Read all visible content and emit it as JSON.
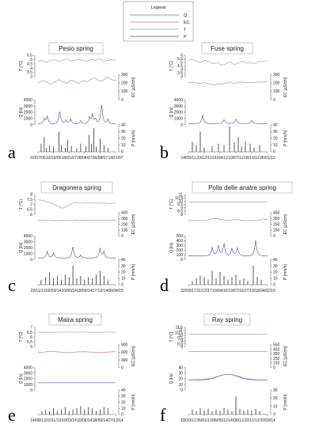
{
  "legend": {
    "title": "Legend",
    "entries": [
      {
        "label": "Q",
        "color": "#7a7a7a"
      },
      {
        "label": "EC",
        "color": "#c07b83"
      },
      {
        "label": "T",
        "color": "#7fae8a"
      },
      {
        "label": "P",
        "color": "#4a4ab0"
      }
    ]
  },
  "chart_data": [
    {
      "type": "line",
      "panel_letter": "a",
      "title": "Pesio spring",
      "x_tick_labels": [
        "02/07/06",
        "10/10/06",
        "18/01/07",
        "28/04/07",
        "06/08/07",
        "14/11/07"
      ],
      "T": {
        "label": "T [°C]",
        "ticks": [
          "3",
          "3.5",
          "4",
          "4.5",
          "5",
          "5.5"
        ],
        "ylim": [
          3,
          5.5
        ],
        "y_samples": [
          4.8,
          4.9,
          4.7,
          4.9,
          5.0,
          4.8,
          4.9,
          5.1,
          4.8,
          4.9,
          5.0,
          4.9,
          4.8,
          5.0,
          4.9,
          5.1,
          4.8,
          4.9,
          5.0,
          4.9
        ]
      },
      "EC": {
        "label": "EC [µS/cm]",
        "ticks": [
          "0",
          "100",
          "200",
          "300"
        ],
        "ylim": [
          0,
          300
        ],
        "y_samples": [
          200,
          230,
          215,
          185,
          205,
          240,
          215,
          195,
          235,
          220,
          190,
          230,
          215,
          245,
          260,
          220,
          235,
          275,
          240,
          230
        ]
      },
      "Q": {
        "label": "Q [l/s]",
        "ticks": [
          "0",
          "1000",
          "2000",
          "3000",
          "4000"
        ],
        "ylim": [
          0,
          4000
        ],
        "peaks": [
          [
            0.08,
            900
          ],
          [
            0.12,
            1300
          ],
          [
            0.28,
            2300
          ],
          [
            0.36,
            700
          ],
          [
            0.42,
            900
          ],
          [
            0.55,
            600
          ],
          [
            0.66,
            1000
          ],
          [
            0.7,
            1600
          ],
          [
            0.74,
            900
          ],
          [
            0.82,
            3500
          ],
          [
            0.9,
            800
          ]
        ],
        "base": 150
      },
      "P": {
        "label": "P [mm/h]",
        "ticks": [
          "0",
          "10",
          "20",
          "30",
          "40"
        ],
        "ylim": [
          0,
          40
        ],
        "bars": [
          [
            0.04,
            12
          ],
          [
            0.08,
            22
          ],
          [
            0.11,
            6
          ],
          [
            0.15,
            10
          ],
          [
            0.2,
            8
          ],
          [
            0.27,
            30
          ],
          [
            0.3,
            10
          ],
          [
            0.35,
            6
          ],
          [
            0.38,
            18
          ],
          [
            0.43,
            9
          ],
          [
            0.5,
            5
          ],
          [
            0.55,
            12
          ],
          [
            0.62,
            8
          ],
          [
            0.66,
            25
          ],
          [
            0.69,
            12
          ],
          [
            0.72,
            35
          ],
          [
            0.75,
            8
          ],
          [
            0.8,
            20
          ],
          [
            0.85,
            10
          ],
          [
            0.9,
            6
          ]
        ]
      }
    },
    {
      "type": "line",
      "panel_letter": "b",
      "title": "Fuse spring",
      "x_tick_labels": [
        "14/09/11",
        "23/12/11",
        "01/04/12",
        "10/07/12",
        "18/10/12",
        "26/01/13"
      ],
      "T": {
        "label": "T [°C]",
        "ticks": [
          "3",
          "3.5",
          "4",
          "4.5",
          "5",
          "5.5",
          "6"
        ],
        "ylim": [
          3,
          6
        ],
        "y_samples": [
          5.3,
          5.4,
          5.2,
          5.0,
          5.3,
          5.1,
          4.8,
          5.0,
          4.6,
          4.8,
          5.1,
          4.7,
          4.9,
          5.2,
          4.9,
          5.0,
          4.8,
          5.2,
          5.1,
          5.3
        ]
      },
      "EC": {
        "label": "EC [µS/cm]",
        "ticks": [
          "0",
          "100",
          "200",
          "300"
        ],
        "ylim": [
          0,
          300
        ],
        "y_samples": [
          205,
          210,
          200,
          195,
          205,
          190,
          175,
          190,
          185,
          200,
          210,
          195,
          205,
          215,
          200,
          210,
          205,
          215,
          210,
          220
        ]
      },
      "Q": {
        "label": "Q [l/s]",
        "ticks": [
          "0",
          "1000",
          "2000",
          "3000",
          "4000"
        ],
        "ylim": [
          0,
          4000
        ],
        "peaks": [
          [
            0.18,
            1500
          ],
          [
            0.45,
            700
          ],
          [
            0.6,
            800
          ],
          [
            0.8,
            600
          ]
        ],
        "base": 200
      },
      "P": {
        "label": "P [mm/h]",
        "ticks": [
          "0",
          "10",
          "20",
          "30",
          "40"
        ],
        "ylim": [
          0,
          40
        ],
        "bars": [
          [
            0.05,
            15
          ],
          [
            0.1,
            10
          ],
          [
            0.15,
            30
          ],
          [
            0.2,
            6
          ],
          [
            0.3,
            8
          ],
          [
            0.38,
            12
          ],
          [
            0.45,
            10
          ],
          [
            0.52,
            38
          ],
          [
            0.58,
            14
          ],
          [
            0.63,
            22
          ],
          [
            0.67,
            8
          ],
          [
            0.72,
            16
          ],
          [
            0.78,
            12
          ],
          [
            0.83,
            6
          ],
          [
            0.9,
            10
          ]
        ]
      }
    },
    {
      "type": "line",
      "panel_letter": "c",
      "title": "Dragonera spring",
      "x_tick_labels": [
        "22/11/13",
        "02/03/14",
        "10/06/14",
        "18/09/14",
        "27/12/14",
        "06/04/15"
      ],
      "T": {
        "label": "T [°C]",
        "ticks": [
          "6",
          "6.5",
          "7",
          "7.5",
          "8"
        ],
        "ylim": [
          6,
          8
        ],
        "y_samples": [
          7.5,
          7.4,
          7.3,
          7.2,
          7.0,
          6.8,
          6.6,
          6.8,
          7.0,
          7.2,
          7.2,
          7.1,
          7.2,
          7.1,
          7.2,
          7.1,
          7.2,
          7.1,
          7.1,
          7.2
        ]
      },
      "EC": {
        "label": "EC [µS/cm]",
        "ticks": [
          "0",
          "100",
          "200",
          "300",
          "400"
        ],
        "ylim": [
          0,
          400
        ],
        "y_samples": [
          270,
          275,
          265,
          270,
          260,
          265,
          270,
          265,
          260,
          270,
          275,
          270,
          265,
          275,
          270,
          275,
          265,
          270,
          275,
          270
        ]
      },
      "Q": {
        "label": "Q [l/s]",
        "ticks": [
          "0",
          "1000",
          "2000",
          "3000",
          "4000"
        ],
        "ylim": [
          0,
          4000
        ],
        "peaks": [
          [
            0.12,
            1200
          ],
          [
            0.2,
            900
          ],
          [
            0.45,
            2200
          ],
          [
            0.55,
            600
          ],
          [
            0.8,
            1800
          ],
          [
            0.85,
            1200
          ]
        ],
        "base": 250
      },
      "P": {
        "label": "P [mm/h]",
        "ticks": [
          "0",
          "10",
          "20",
          "30",
          "40"
        ],
        "ylim": [
          0,
          40
        ],
        "bars": [
          [
            0.04,
            8
          ],
          [
            0.1,
            12
          ],
          [
            0.15,
            20
          ],
          [
            0.2,
            10
          ],
          [
            0.25,
            14
          ],
          [
            0.3,
            8
          ],
          [
            0.35,
            16
          ],
          [
            0.4,
            12
          ],
          [
            0.45,
            30
          ],
          [
            0.5,
            10
          ],
          [
            0.55,
            14
          ],
          [
            0.6,
            8
          ],
          [
            0.65,
            12
          ],
          [
            0.7,
            10
          ],
          [
            0.75,
            16
          ],
          [
            0.8,
            22
          ],
          [
            0.85,
            14
          ],
          [
            0.9,
            8
          ]
        ]
      }
    },
    {
      "type": "line",
      "panel_letter": "d",
      "title": "Polla delle anatre spring",
      "x_tick_labels": [
        "22/09/17",
        "31/12/17",
        "10/04/18",
        "19/07/18",
        "27/10/18",
        "04/02/19"
      ],
      "T": {
        "label": "T [°C]",
        "ticks": [
          "8",
          "8.5",
          "9",
          "9.5",
          "10",
          "10.5",
          "11"
        ],
        "ylim": [
          8,
          11
        ],
        "y_samples": [
          9.9,
          9.9,
          9.9,
          9.9,
          9.9,
          9.9,
          9.9,
          9.9,
          9.9,
          9.9,
          9.9,
          9.9,
          9.9,
          9.9,
          9.9,
          9.9,
          9.9,
          9.9,
          9.9,
          9.9
        ]
      },
      "EC": {
        "label": "EC [µS/cm]",
        "ticks": [
          "0",
          "150",
          "250",
          "350",
          "450"
        ],
        "ylim": [
          0,
          450
        ],
        "y_samples": [
          300,
          305,
          300,
          295,
          300,
          320,
          340,
          330,
          315,
          305,
          300,
          320,
          310,
          300,
          295,
          300,
          305,
          300,
          330,
          310
        ]
      },
      "Q": {
        "label": "Q [l/s]",
        "ticks": [
          "0",
          "100",
          "200",
          "300",
          "400",
          "500"
        ],
        "ylim": [
          0,
          500
        ],
        "peaks": [
          [
            0.3,
            200
          ],
          [
            0.38,
            250
          ],
          [
            0.45,
            300
          ],
          [
            0.55,
            180
          ],
          [
            0.62,
            200
          ],
          [
            0.85,
            350
          ]
        ],
        "base": 80
      },
      "P": {
        "label": "P [mm/h]",
        "ticks": [
          "0",
          "10",
          "20",
          "30",
          "40"
        ],
        "ylim": [
          0,
          40
        ],
        "bars": [
          [
            0.05,
            6
          ],
          [
            0.1,
            10
          ],
          [
            0.15,
            14
          ],
          [
            0.2,
            12
          ],
          [
            0.25,
            8
          ],
          [
            0.3,
            22
          ],
          [
            0.35,
            10
          ],
          [
            0.4,
            20
          ],
          [
            0.45,
            14
          ],
          [
            0.5,
            8
          ],
          [
            0.55,
            12
          ],
          [
            0.6,
            16
          ],
          [
            0.65,
            8
          ],
          [
            0.7,
            10
          ],
          [
            0.75,
            6
          ],
          [
            0.82,
            30
          ],
          [
            0.87,
            12
          ],
          [
            0.92,
            8
          ]
        ]
      }
    },
    {
      "type": "line",
      "panel_letter": "e",
      "title": "Maira spring",
      "x_tick_labels": [
        "14/08/13",
        "22/11/13",
        "02/03/14",
        "10/06/14",
        "18/09/14",
        "27/12/14"
      ],
      "T": {
        "label": "T [°C]",
        "ticks": [
          "5",
          "5.5",
          "6",
          "6.5",
          "7"
        ],
        "ylim": [
          5,
          7
        ],
        "y_samples": [
          6.5,
          6.5,
          6.5,
          6.5,
          6.5,
          6.5,
          6.5,
          6.5,
          6.5,
          6.5,
          6.5,
          6.5,
          6.5,
          6.5,
          6.5,
          6.5,
          6.5,
          6.5,
          6.5,
          6.5
        ]
      },
      "EC": {
        "label": "EC [µS/cm]",
        "ticks": [
          "0",
          "300",
          "600",
          "900"
        ],
        "ylim": [
          0,
          900
        ],
        "y_samples": [
          610,
          600,
          620,
          640,
          630,
          620,
          600,
          590,
          600,
          610,
          620,
          630,
          620,
          610,
          600,
          590,
          600,
          610,
          620,
          630
        ]
      },
      "Q": {
        "label": "Q [l/s]",
        "ticks": [
          "0",
          "1000",
          "2000",
          "3000",
          "4000"
        ],
        "ylim": [
          0,
          4000
        ],
        "peaks": [],
        "base": 1300
      },
      "P": {
        "label": "P [mm/h]",
        "ticks": [
          "0",
          "10",
          "20",
          "30",
          "40"
        ],
        "ylim": [
          0,
          40
        ],
        "bars": [
          [
            0.05,
            6
          ],
          [
            0.1,
            8
          ],
          [
            0.15,
            5
          ],
          [
            0.2,
            10
          ],
          [
            0.25,
            6
          ],
          [
            0.3,
            8
          ],
          [
            0.35,
            12
          ],
          [
            0.4,
            6
          ],
          [
            0.45,
            8
          ],
          [
            0.5,
            10
          ],
          [
            0.55,
            14
          ],
          [
            0.6,
            8
          ],
          [
            0.65,
            12
          ],
          [
            0.7,
            10
          ],
          [
            0.75,
            6
          ],
          [
            0.8,
            8
          ],
          [
            0.85,
            12
          ],
          [
            0.9,
            10
          ]
        ]
      }
    },
    {
      "type": "line",
      "panel_letter": "f",
      "title": "Ray spring",
      "x_tick_labels": [
        "18/10/12",
        "26/01/13",
        "06/05/13",
        "14/08/13",
        "22/11/13",
        "02/03/14"
      ],
      "T": {
        "label": "T [°C]",
        "ticks": [
          "8",
          "8.5",
          "9",
          "9.5",
          "10",
          "10.5",
          "11",
          "11.5"
        ],
        "ylim": [
          8,
          11.5
        ],
        "y_samples": [
          10.3,
          10.3,
          10.3,
          10.3,
          10.3,
          10.3,
          10.3,
          10.3,
          10.3,
          10.3,
          10.3,
          10.3,
          10.3,
          10.3,
          10.3,
          10.3,
          10.3,
          10.3,
          10.3,
          10.3
        ]
      },
      "EC": {
        "label": "EC [µS/cm]",
        "ticks": [
          "0",
          "150",
          "250",
          "350",
          "450",
          "550"
        ],
        "ylim": [
          0,
          550
        ],
        "y_samples": [
          390,
          390,
          390,
          390,
          390,
          390,
          390,
          390,
          390,
          390,
          390,
          390,
          390,
          390,
          390,
          390,
          390,
          390,
          390,
          390
        ]
      },
      "Q": {
        "label": "Q [l/s]",
        "ticks": [
          "0",
          "10",
          "20",
          "30",
          "40"
        ],
        "ylim": [
          0,
          40
        ],
        "peaks": [],
        "base": 18,
        "hump": true
      },
      "P": {
        "label": "P [mm/h]",
        "ticks": [
          "0",
          "10",
          "20",
          "30"
        ],
        "ylim": [
          0,
          30
        ],
        "bars": [
          [
            0.05,
            6
          ],
          [
            0.1,
            4
          ],
          [
            0.15,
            8
          ],
          [
            0.2,
            5
          ],
          [
            0.25,
            7
          ],
          [
            0.3,
            4
          ],
          [
            0.35,
            6
          ],
          [
            0.4,
            5
          ],
          [
            0.45,
            8
          ],
          [
            0.5,
            6
          ],
          [
            0.55,
            4
          ],
          [
            0.6,
            22
          ],
          [
            0.65,
            7
          ],
          [
            0.7,
            5
          ],
          [
            0.75,
            6
          ],
          [
            0.8,
            5
          ],
          [
            0.85,
            7
          ],
          [
            0.9,
            4
          ]
        ]
      }
    }
  ]
}
